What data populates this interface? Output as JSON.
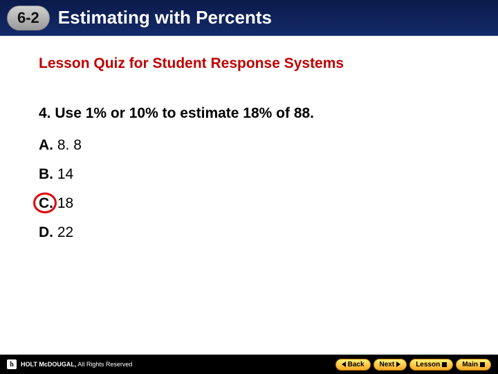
{
  "header": {
    "chapter": "6-2",
    "title": "Estimating with Percents"
  },
  "subtitle": "Lesson Quiz for Student Response Systems",
  "question": {
    "number": "4.",
    "text": "Use 1% or 10% to estimate 18% of 88."
  },
  "options": [
    {
      "letter": "A.",
      "value": "8. 8",
      "circled": false
    },
    {
      "letter": "B.",
      "value": "14",
      "circled": false
    },
    {
      "letter": "C.",
      "value": "18",
      "circled": true
    },
    {
      "letter": "D.",
      "value": "22",
      "circled": false
    }
  ],
  "footer": {
    "brand": "HOLT McDOUGAL,",
    "rights": "All Rights Reserved",
    "nav": {
      "back": "Back",
      "next": "Next",
      "lesson": "Lesson",
      "main": "Main"
    }
  },
  "colors": {
    "headerBg": "#0a1a4a",
    "subtitle": "#c00000",
    "circle": "#e00000",
    "footerBg": "#000000",
    "navBtn": "#f9a825"
  }
}
